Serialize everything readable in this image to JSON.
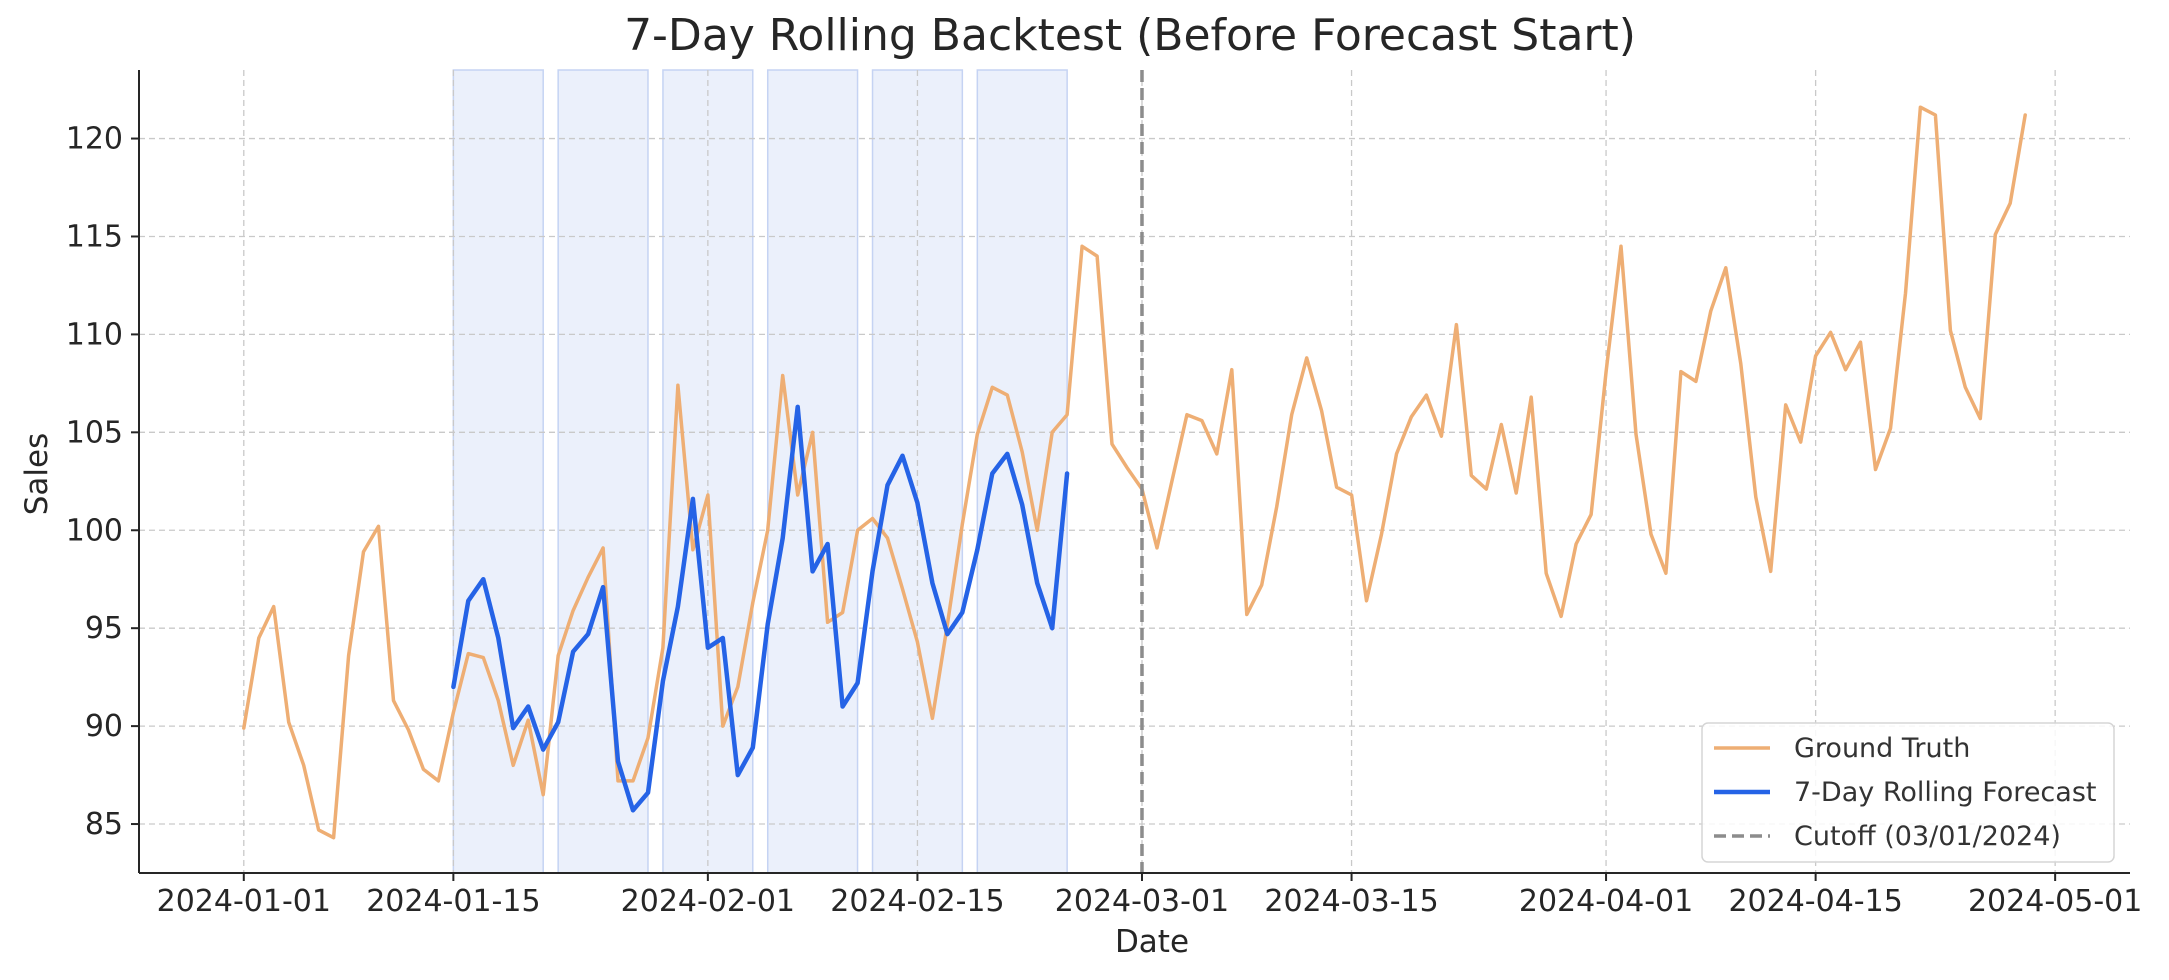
{
  "chart_data": {
    "type": "line",
    "title": "7-Day Rolling Backtest (Before Forecast Start)",
    "xlabel": "Date",
    "ylabel": "Sales",
    "x_tick_labels": [
      "2024-01-01",
      "2024-01-15",
      "2024-02-01",
      "2024-02-15",
      "2024-03-01",
      "2024-03-15",
      "2024-04-01",
      "2024-04-15",
      "2024-05-01"
    ],
    "x_tick_dates": [
      "2024-01-01",
      "2024-01-15",
      "2024-02-01",
      "2024-02-15",
      "2024-03-01",
      "2024-03-15",
      "2024-04-01",
      "2024-04-15",
      "2024-05-01"
    ],
    "xlim": [
      "2023-12-25",
      "2024-05-06"
    ],
    "y_ticks": [
      85,
      90,
      95,
      100,
      105,
      110,
      115,
      120
    ],
    "ylim": [
      82.5,
      123.5
    ],
    "grid": true,
    "legend_position": "lower-right",
    "cutoff_date": "2024-03-01",
    "backtest_windows": [
      [
        "2024-01-15",
        "2024-01-21"
      ],
      [
        "2024-01-22",
        "2024-01-28"
      ],
      [
        "2024-01-29",
        "2024-02-04"
      ],
      [
        "2024-02-05",
        "2024-02-11"
      ],
      [
        "2024-02-12",
        "2024-02-18"
      ],
      [
        "2024-02-19",
        "2024-02-25"
      ]
    ],
    "series": [
      {
        "name": "Ground Truth",
        "color": "#eeae74",
        "start_date": "2024-01-01",
        "values": [
          89.9,
          94.5,
          96.1,
          90.2,
          88.0,
          84.7,
          84.3,
          93.6,
          98.9,
          100.2,
          91.3,
          89.8,
          87.8,
          87.2,
          90.7,
          93.7,
          93.5,
          91.3,
          88.0,
          90.3,
          86.5,
          93.6,
          95.9,
          97.6,
          99.1,
          87.2,
          87.2,
          89.4,
          94.0,
          107.4,
          99.0,
          101.8,
          90.0,
          92.0,
          96.3,
          100.0,
          107.9,
          101.8,
          105.0,
          95.3,
          95.8,
          100.0,
          100.6,
          99.6,
          97.0,
          94.3,
          90.4,
          95.2,
          100.3,
          104.9,
          107.3,
          106.9,
          104.0,
          100.0,
          105.0,
          105.9,
          114.5,
          114.0,
          104.4,
          103.2,
          102.1,
          99.1,
          102.5,
          105.9,
          105.6,
          103.9,
          108.2,
          95.7,
          97.2,
          101.2,
          105.9,
          108.8,
          106.1,
          102.2,
          101.8,
          96.4,
          99.8,
          103.9,
          105.8,
          106.9,
          104.8,
          110.5,
          102.8,
          102.1,
          105.4,
          101.9,
          106.8,
          97.8,
          95.6,
          99.3,
          100.8,
          108.1,
          114.5,
          104.9,
          99.8,
          97.8,
          108.1,
          107.6,
          111.2,
          113.4,
          108.5,
          101.7,
          97.9,
          106.4,
          104.5,
          108.9,
          110.1,
          108.2,
          109.6,
          103.1,
          105.2,
          112.1,
          121.6,
          121.2,
          110.2,
          107.3,
          105.7,
          115.1,
          116.7,
          121.2
        ]
      },
      {
        "name": "7-Day Rolling Forecast",
        "color": "#2563e6",
        "start_date": "2024-01-15",
        "values": [
          92.0,
          96.4,
          97.5,
          94.5,
          89.9,
          91.0,
          88.8,
          90.2,
          93.8,
          94.7,
          97.1,
          88.2,
          85.7,
          86.6,
          92.3,
          96.1,
          101.6,
          94.0,
          94.5,
          87.5,
          88.9,
          95.2,
          99.6,
          106.3,
          97.9,
          99.3,
          91.0,
          92.2,
          97.9,
          102.3,
          103.8,
          101.4,
          97.3,
          94.7,
          95.8,
          99.0,
          102.9,
          103.9,
          101.3,
          97.3,
          95.0,
          102.9
        ]
      },
      {
        "name": "Cutoff (03/01/2024)",
        "color": "#8c8c8c"
      }
    ]
  }
}
